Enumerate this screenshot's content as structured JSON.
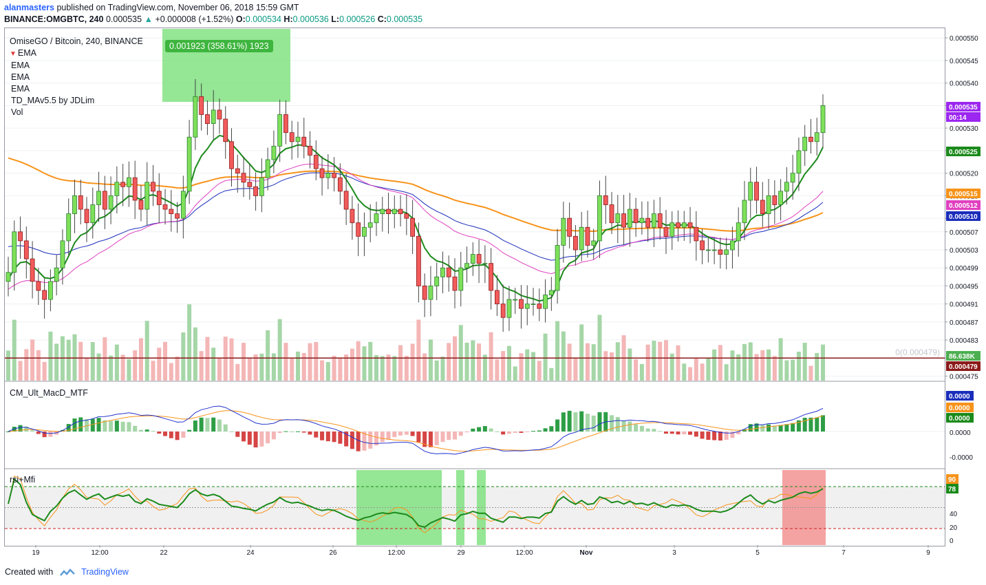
{
  "header": {
    "author": "alanmasters",
    "published_text": "published on TradingView.com, November 06, 2018 15:59 GMT",
    "symbol": "BINANCE:OMGBTC, 240",
    "last": "0.000535",
    "change": "+0.000008 (+1.52%)",
    "o_label": "O:",
    "o_value": "0.000534",
    "h_label": "H:",
    "h_value": "0.000536",
    "l_label": "L:",
    "l_value": "0.000526",
    "c_label": "C:",
    "c_value": "0.000535"
  },
  "legend": {
    "title": "OmiseGO / Bitcoin, 240, BINANCE",
    "items": [
      "EMA",
      "EMA",
      "EMA",
      "EMA",
      "TD_MAv5.5 by JDLim",
      "Vol"
    ]
  },
  "measure_tooltip": "0.001923 (358.61%) 1923",
  "volume_label": "0(0.000479)",
  "macd_title": "CM_Ult_MacD_MTF",
  "rsi_title": "rsi+Mfi",
  "footer": {
    "created_with": "Created with",
    "brand": "TradingView"
  },
  "colors": {
    "up": "#4caf50",
    "down": "#ef5350",
    "ema_fast": "#1b8a1b",
    "ema_orange": "#f7931a",
    "ema_blue": "#1a2dbb",
    "ema_pink": "#e040c0"
  },
  "chart_data": {
    "type": "candlestick",
    "symbol": "OMGBTC",
    "interval": "240",
    "x_ticks": [
      "19",
      "12:00",
      "22",
      "24",
      "26",
      "12:00",
      "29",
      "12:00",
      "Nov",
      "3",
      "5",
      "7",
      "9"
    ],
    "y_ticks": [
      "0.000550",
      "0.000545",
      "0.000540",
      "0.000535",
      "0.000530",
      "0.000525",
      "0.000520",
      "0.000515",
      "0.000510",
      "0.000507",
      "0.000503",
      "0.000499",
      "0.000495",
      "0.000491",
      "0.000487",
      "0.000483",
      "0.000479",
      "0.000475"
    ],
    "ylim": [
      0.000474,
      0.000552
    ],
    "price_labels": [
      {
        "text": "0.000535",
        "color": "#9c27f0"
      },
      {
        "text": "00:14",
        "color": "#9c27f0"
      },
      {
        "text": "0.000525",
        "color": "#1b8a1b"
      },
      {
        "text": "0.000515",
        "color": "#f7931a"
      },
      {
        "text": "0.000512",
        "color": "#e040c0"
      },
      {
        "text": "0.000510",
        "color": "#1a2dbb"
      },
      {
        "text": "86.638K",
        "color": "#4caf50"
      },
      {
        "text": "0.000479",
        "color": "#8b1a1a"
      }
    ],
    "close": [
      0.000498,
      0.000507,
      0.000505,
      0.000501,
      0.000496,
      0.000494,
      0.000492,
      0.000496,
      0.000499,
      0.000505,
      0.000511,
      0.000515,
      0.000512,
      0.000509,
      0.000513,
      0.000516,
      0.000512,
      0.000515,
      0.000518,
      0.000517,
      0.000519,
      0.000514,
      0.000512,
      0.000518,
      0.000516,
      0.000513,
      0.000512,
      0.000511,
      0.00051,
      0.000516,
      0.000528,
      0.000537,
      0.000533,
      0.000531,
      0.000534,
      0.000532,
      0.000527,
      0.000521,
      0.00052,
      0.000518,
      0.000517,
      0.000515,
      0.000519,
      0.000523,
      0.000526,
      0.000533,
      0.000529,
      0.000527,
      0.000528,
      0.000526,
      0.000524,
      0.000521,
      0.000519,
      0.00052,
      0.000519,
      0.000516,
      0.000512,
      0.000509,
      0.000506,
      0.000508,
      0.000509,
      0.000511,
      0.000512,
      0.000511,
      0.000512,
      0.000511,
      0.00051,
      0.000506,
      0.000495,
      0.000492,
      0.000495,
      0.000497,
      0.000499,
      0.000497,
      0.000494,
      0.000499,
      0.0005,
      0.000502,
      0.0005,
      0.0005,
      0.000494,
      0.000491,
      0.000488,
      0.000492,
      0.000492,
      0.00049,
      0.000491,
      0.000491,
      0.00049,
      0.000493,
      0.000494,
      0.000504,
      0.00051,
      0.000506,
      0.000503,
      0.000508,
      0.000504,
      0.000505,
      0.000515,
      0.000513,
      0.000509,
      0.000511,
      0.000508,
      0.000512,
      0.000509,
      0.00051,
      0.000508,
      0.000511,
      0.000508,
      0.000506,
      0.000509,
      0.000508,
      0.000509,
      0.000508,
      0.000505,
      0.000503,
      0.000503,
      0.000503,
      0.000502,
      0.000503,
      0.000505,
      0.000509,
      0.000514,
      0.000518,
      0.000514,
      0.000511,
      0.000515,
      0.000513,
      0.000516,
      0.000518,
      0.00052,
      0.000525,
      0.000528,
      0.000527,
      0.000529,
      0.000535
    ]
  }
}
